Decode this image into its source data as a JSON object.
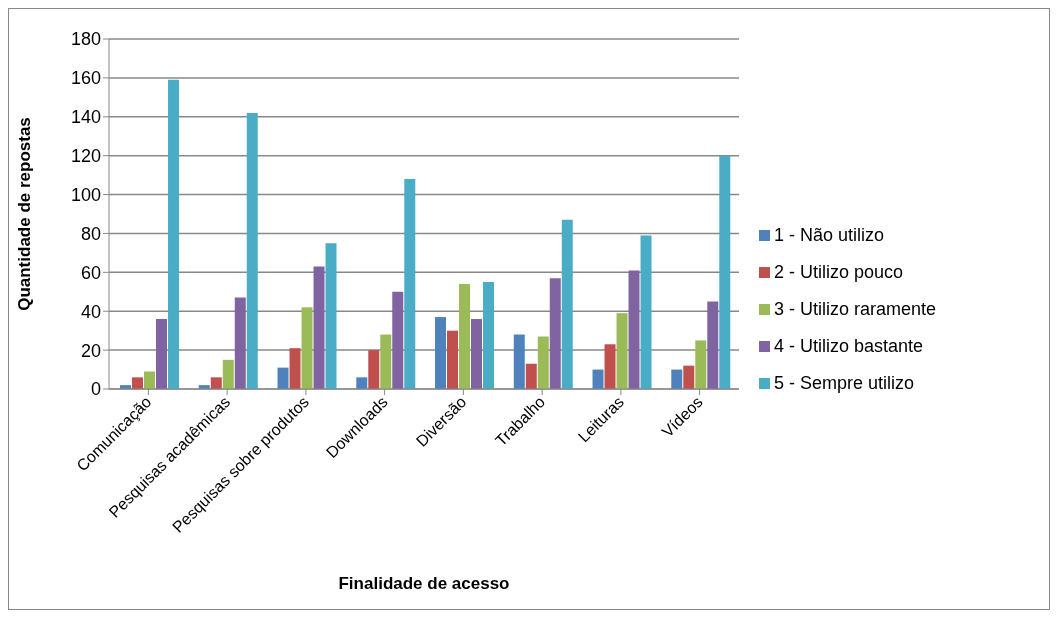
{
  "chart_data": {
    "type": "bar",
    "categories": [
      "Comunicação",
      "Pesquisas acadêmicas",
      "Pesquisas sobre produtos",
      "Downloads",
      "Diversão",
      "Trabalho",
      "Leituras",
      "Vídeos"
    ],
    "series": [
      {
        "name": "1 - Não utilizo",
        "color": "#4f81bd",
        "values": [
          2,
          2,
          11,
          6,
          37,
          28,
          10,
          10
        ]
      },
      {
        "name": "2 - Utilizo pouco",
        "color": "#c0504d",
        "values": [
          6,
          6,
          21,
          20,
          30,
          13,
          23,
          12
        ]
      },
      {
        "name": "3 - Utilizo raramente",
        "color": "#9bbb59",
        "values": [
          9,
          15,
          42,
          28,
          54,
          27,
          39,
          25
        ]
      },
      {
        "name": "4 - Utilizo bastante",
        "color": "#8064a2",
        "values": [
          36,
          47,
          63,
          50,
          36,
          57,
          61,
          45
        ]
      },
      {
        "name": "5 - Sempre utilizo",
        "color": "#4bacc6",
        "values": [
          159,
          142,
          75,
          108,
          55,
          87,
          79,
          120
        ]
      }
    ],
    "xlabel": "Finalidade de acesso",
    "ylabel": "Quantidade de repostas",
    "ylim": [
      0,
      180
    ],
    "yticks": [
      0,
      20,
      40,
      60,
      80,
      100,
      120,
      140,
      160,
      180
    ],
    "grid": "y",
    "legend": "right"
  }
}
